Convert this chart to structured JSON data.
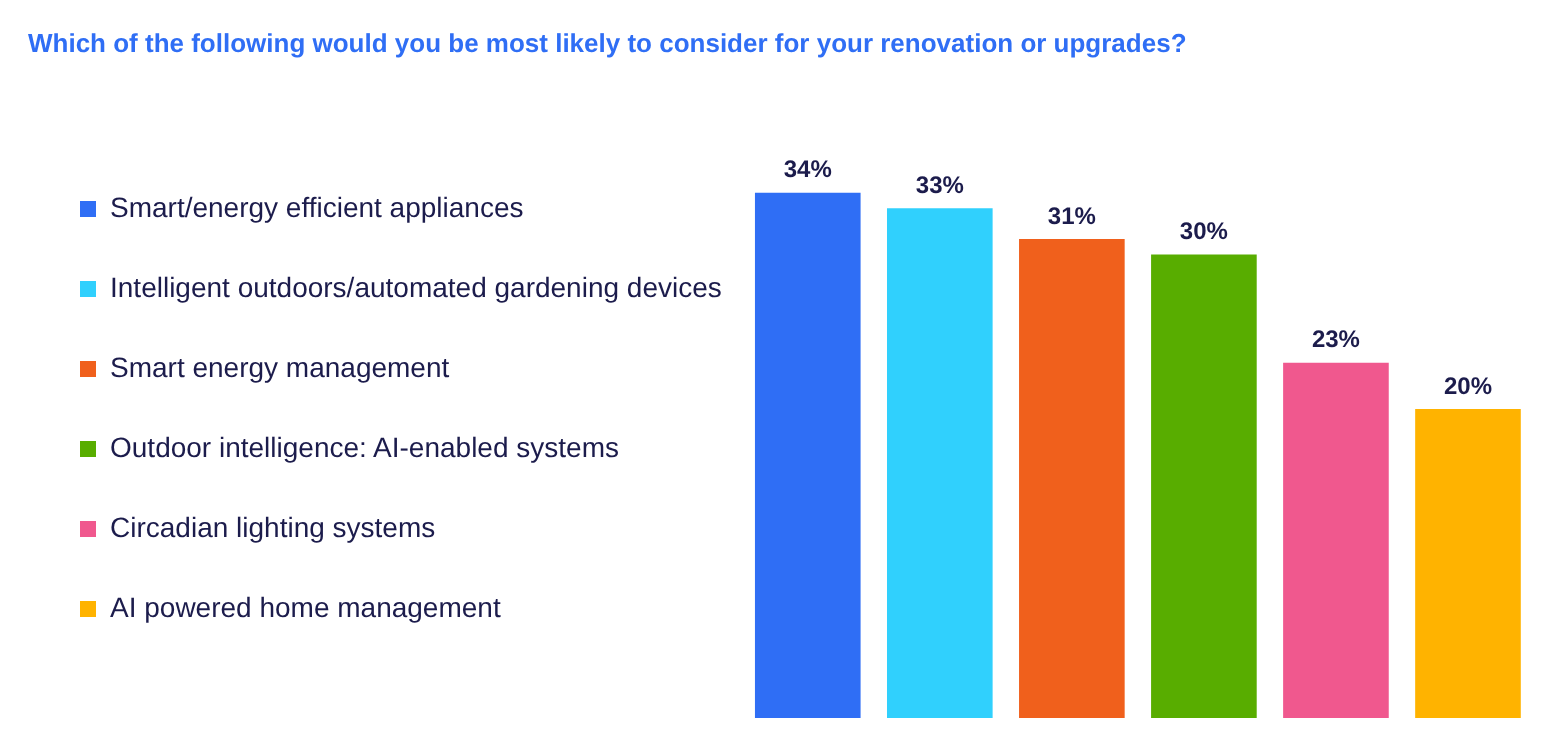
{
  "chart_data": {
    "type": "bar",
    "title": "Which of the following would you be most likely to consider for your renovation or upgrades?",
    "categories": [
      null
    ],
    "series": [
      {
        "name": "Smart/energy efficient appliances",
        "color": "#2f6ef5",
        "values": [
          34
        ],
        "value_labels": [
          "34%"
        ]
      },
      {
        "name": "Intelligent outdoors/automated gardening devices",
        "color": "#30d0fd",
        "values": [
          33
        ],
        "value_labels": [
          "33%"
        ]
      },
      {
        "name": "Smart energy management",
        "color": "#f0601c",
        "values": [
          31
        ],
        "value_labels": [
          "31%"
        ]
      },
      {
        "name": "Outdoor intelligence: AI-enabled systems",
        "color": "#58ad00",
        "values": [
          30
        ],
        "value_labels": [
          "30%"
        ]
      },
      {
        "name": "Circadian lighting systems",
        "color": "#f0588e",
        "values": [
          23
        ],
        "value_labels": [
          "23%"
        ]
      },
      {
        "name": "AI powered home management",
        "color": "#ffb300",
        "values": [
          20
        ],
        "value_labels": [
          "20%"
        ]
      }
    ],
    "tick_labels": false,
    "legend": "left"
  }
}
